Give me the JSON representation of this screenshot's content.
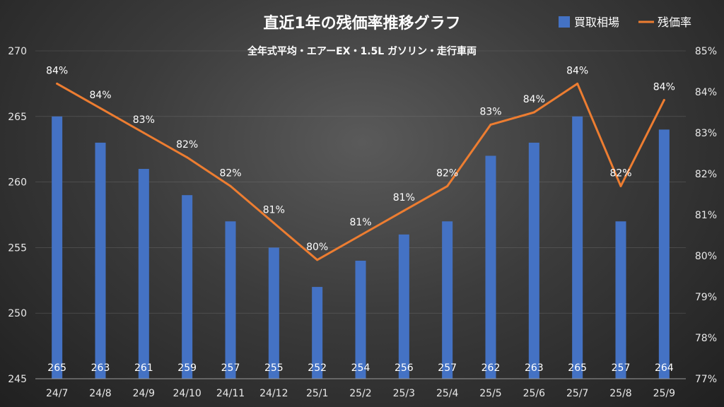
{
  "chart_data": {
    "type": "bar",
    "title": "直近1年の残価率推移グラフ",
    "subtitle": "全年式平均・エアーEX・1.5L ガソリン・走行車両",
    "categories": [
      "24/7",
      "24/8",
      "24/9",
      "24/10",
      "24/11",
      "24/12",
      "25/1",
      "25/2",
      "25/3",
      "25/4",
      "25/5",
      "25/6",
      "25/7",
      "25/8",
      "25/9"
    ],
    "series": [
      {
        "name": "買取相場",
        "type": "bar",
        "axis": "left",
        "color": "#4472C4",
        "values": [
          265,
          263,
          261,
          259,
          257,
          255,
          252,
          254,
          256,
          257,
          262,
          263,
          265,
          257,
          264
        ],
        "value_labels": [
          "265",
          "263",
          "261",
          "259",
          "257",
          "255",
          "252",
          "254",
          "256",
          "257",
          "262",
          "263",
          "265",
          "257",
          "264"
        ]
      },
      {
        "name": "残価率",
        "type": "line",
        "axis": "right",
        "color": "#ED7D31",
        "values": [
          84.2,
          83.6,
          83.0,
          82.4,
          81.7,
          80.8,
          79.9,
          80.5,
          81.1,
          81.7,
          83.2,
          83.5,
          84.2,
          81.7,
          83.8
        ],
        "value_labels": [
          "84%",
          "84%",
          "83%",
          "82%",
          "82%",
          "81%",
          "80%",
          "81%",
          "81%",
          "82%",
          "83%",
          "84%",
          "84%",
          "82%",
          "84%"
        ]
      }
    ],
    "y_left": {
      "min": 245,
      "max": 270,
      "ticks": [
        "245",
        "250",
        "255",
        "260",
        "265",
        "270"
      ]
    },
    "y_right": {
      "min": 77,
      "max": 85,
      "ticks": [
        "77%",
        "78%",
        "79%",
        "80%",
        "81%",
        "82%",
        "83%",
        "84%",
        "85%"
      ]
    },
    "legend_position": "top-right"
  }
}
